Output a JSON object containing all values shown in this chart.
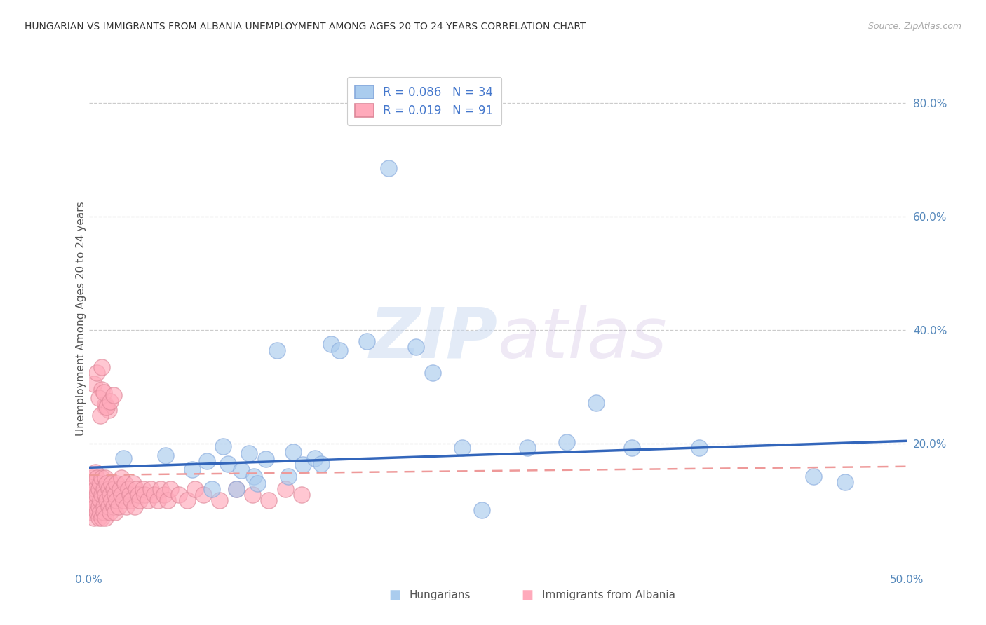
{
  "title": "HUNGARIAN VS IMMIGRANTS FROM ALBANIA UNEMPLOYMENT AMONG AGES 20 TO 24 YEARS CORRELATION CHART",
  "source": "Source: ZipAtlas.com",
  "ylabel": "Unemployment Among Ages 20 to 24 years",
  "xlim": [
    0.0,
    0.5
  ],
  "ylim": [
    -0.02,
    0.86
  ],
  "xticks": [
    0.0,
    0.1,
    0.2,
    0.3,
    0.4,
    0.5
  ],
  "xticklabels": [
    "0.0%",
    "",
    "",
    "",
    "",
    "50.0%"
  ],
  "yticks_right": [
    0.2,
    0.4,
    0.6,
    0.8
  ],
  "yticklabels_right": [
    "20.0%",
    "40.0%",
    "60.0%",
    "80.0%"
  ],
  "grid_color": "#cccccc",
  "bg_color": "#ffffff",
  "watermark_zip": "ZIP",
  "watermark_atlas": "atlas",
  "legend_text1": "R = 0.086   N = 34",
  "legend_text2": "R = 0.019   N = 91",
  "hungarian_face": "#aaccee",
  "hungarian_edge": "#88aadd",
  "albanian_face": "#ffaabb",
  "albanian_edge": "#dd8899",
  "trend_blue": "#3366bb",
  "trend_pink": "#ee9999",
  "hung_trend_x": [
    0.0,
    0.5
  ],
  "hung_trend_y": [
    0.158,
    0.205
  ],
  "alb_trend_x": [
    0.0,
    0.5
  ],
  "alb_trend_y": [
    0.145,
    0.16
  ],
  "hungarian_x": [
    0.021,
    0.047,
    0.063,
    0.072,
    0.075,
    0.082,
    0.085,
    0.09,
    0.093,
    0.098,
    0.101,
    0.103,
    0.108,
    0.115,
    0.122,
    0.125,
    0.131,
    0.138,
    0.142,
    0.148,
    0.153,
    0.17,
    0.183,
    0.2,
    0.21,
    0.228,
    0.24,
    0.268,
    0.292,
    0.31,
    0.332,
    0.373,
    0.443,
    0.462
  ],
  "hungarian_y": [
    0.175,
    0.18,
    0.155,
    0.17,
    0.12,
    0.195,
    0.165,
    0.12,
    0.153,
    0.183,
    0.143,
    0.13,
    0.173,
    0.365,
    0.142,
    0.185,
    0.163,
    0.175,
    0.165,
    0.375,
    0.365,
    0.38,
    0.685,
    0.37,
    0.325,
    0.193,
    0.083,
    0.193,
    0.203,
    0.272,
    0.193,
    0.193,
    0.143,
    0.133
  ],
  "albanian_x": [
    0.001,
    0.001,
    0.002,
    0.002,
    0.002,
    0.003,
    0.003,
    0.003,
    0.004,
    0.004,
    0.004,
    0.005,
    0.005,
    0.005,
    0.006,
    0.006,
    0.006,
    0.007,
    0.007,
    0.007,
    0.008,
    0.008,
    0.008,
    0.009,
    0.009,
    0.009,
    0.01,
    0.01,
    0.01,
    0.011,
    0.011,
    0.012,
    0.012,
    0.013,
    0.013,
    0.014,
    0.014,
    0.015,
    0.015,
    0.016,
    0.016,
    0.017,
    0.017,
    0.018,
    0.019,
    0.02,
    0.02,
    0.021,
    0.022,
    0.023,
    0.024,
    0.025,
    0.026,
    0.027,
    0.028,
    0.029,
    0.03,
    0.031,
    0.033,
    0.034,
    0.036,
    0.038,
    0.04,
    0.042,
    0.044,
    0.046,
    0.048,
    0.05,
    0.055,
    0.06,
    0.065,
    0.07,
    0.08,
    0.09,
    0.1,
    0.11,
    0.12,
    0.13,
    0.003,
    0.005,
    0.008,
    0.01,
    0.008,
    0.01,
    0.006,
    0.012,
    0.007,
    0.009,
    0.011,
    0.013,
    0.015
  ],
  "albanian_y": [
    0.09,
    0.12,
    0.08,
    0.11,
    0.14,
    0.07,
    0.1,
    0.13,
    0.09,
    0.12,
    0.15,
    0.08,
    0.11,
    0.14,
    0.09,
    0.12,
    0.07,
    0.1,
    0.13,
    0.08,
    0.11,
    0.14,
    0.07,
    0.09,
    0.12,
    0.08,
    0.11,
    0.14,
    0.07,
    0.1,
    0.13,
    0.09,
    0.12,
    0.08,
    0.11,
    0.1,
    0.13,
    0.09,
    0.12,
    0.08,
    0.11,
    0.1,
    0.13,
    0.09,
    0.12,
    0.11,
    0.14,
    0.1,
    0.13,
    0.09,
    0.12,
    0.11,
    0.1,
    0.13,
    0.09,
    0.12,
    0.11,
    0.1,
    0.12,
    0.11,
    0.1,
    0.12,
    0.11,
    0.1,
    0.12,
    0.11,
    0.1,
    0.12,
    0.11,
    0.1,
    0.12,
    0.11,
    0.1,
    0.12,
    0.11,
    0.1,
    0.12,
    0.11,
    0.305,
    0.325,
    0.295,
    0.27,
    0.335,
    0.265,
    0.28,
    0.26,
    0.25,
    0.29,
    0.265,
    0.275,
    0.285
  ],
  "bottom_label1": "Hungarians",
  "bottom_label2": "Immigrants from Albania",
  "tick_color": "#5588bb",
  "ylabel_color": "#555555"
}
